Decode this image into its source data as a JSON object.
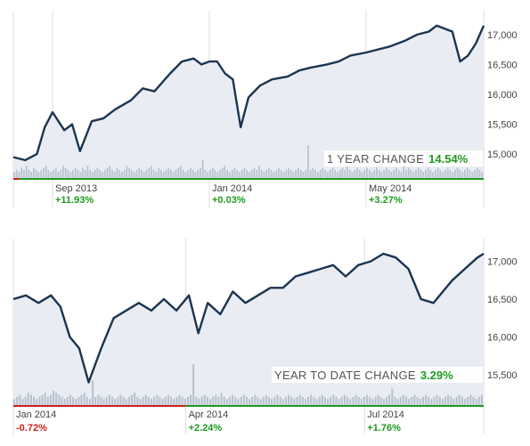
{
  "colors": {
    "line": "#1c3450",
    "area": "#e9edf3",
    "volume": "#b9c3cf",
    "grid": "#dddddd",
    "axis": "#888888",
    "positive": "#1e9a1e",
    "negative": "#cc1f1f"
  },
  "chart_data": [
    {
      "type": "line",
      "title": "",
      "caption_label": "1 YEAR CHANGE",
      "caption_value": "14.54%",
      "caption_color": "#1e9a1e",
      "ylim": [
        14600,
        17400
      ],
      "y_ticks": [
        "17,000",
        "16,500",
        "16,000",
        "15,500",
        "15,000"
      ],
      "y_tick_values": [
        17000,
        16500,
        16000,
        15500,
        15000
      ],
      "x_range": [
        0,
        12
      ],
      "x_ticks": [
        {
          "label": "Sep 2013",
          "x": 1,
          "change": "+11.93%",
          "color": "#1e9a1e"
        },
        {
          "label": "Jan 2014",
          "x": 5,
          "change": "+0.03%",
          "color": "#1e9a1e"
        },
        {
          "label": "May 2014",
          "x": 9,
          "change": "+3.27%",
          "color": "#1e9a1e"
        }
      ],
      "baseline_segments": [
        {
          "from": 0,
          "to": 0.15,
          "color": "#cc1f1f"
        },
        {
          "from": 0.15,
          "to": 12,
          "color": "#1e9a1e"
        }
      ],
      "series": [
        {
          "x": [
            0,
            0.3,
            0.6,
            0.8,
            1.0,
            1.3,
            1.5,
            1.7,
            2.0,
            2.3,
            2.6,
            3.0,
            3.3,
            3.6,
            4.0,
            4.3,
            4.6,
            4.8,
            5.0,
            5.2,
            5.4,
            5.6,
            5.8,
            6.0,
            6.3,
            6.6,
            7.0,
            7.3,
            7.6,
            8.0,
            8.3,
            8.6,
            9.0,
            9.3,
            9.6,
            10.0,
            10.3,
            10.6,
            10.8,
            11.0,
            11.2,
            11.4,
            11.6,
            11.8,
            12.0
          ],
          "y": [
            14950,
            14900,
            15000,
            15450,
            15700,
            15400,
            15500,
            15050,
            15550,
            15600,
            15750,
            15900,
            16100,
            16050,
            16350,
            16550,
            16600,
            16500,
            16550,
            16550,
            16350,
            16250,
            15450,
            15950,
            16150,
            16250,
            16300,
            16400,
            16450,
            16500,
            16550,
            16650,
            16700,
            16750,
            16800,
            16900,
            17000,
            17050,
            17150,
            17100,
            17050,
            16550,
            16650,
            16850,
            17150
          ]
        }
      ],
      "volume": [
        3,
        4,
        3,
        5,
        4,
        6,
        4,
        3,
        5,
        4,
        3,
        4,
        5,
        6,
        4,
        3,
        4,
        5,
        3,
        4,
        6,
        5,
        4,
        3,
        4,
        5,
        4,
        3,
        5,
        4,
        6,
        4,
        3,
        4,
        5,
        4,
        3,
        4,
        5,
        6,
        4,
        3,
        5,
        4,
        3,
        4,
        6,
        5,
        4,
        3,
        4,
        5,
        4,
        3,
        4,
        5,
        6,
        4,
        3,
        5,
        4,
        3,
        4,
        5,
        4,
        3,
        4,
        5,
        6,
        4,
        3,
        4,
        5,
        4,
        3,
        4,
        5,
        9,
        4,
        3,
        4,
        5,
        4,
        3,
        4,
        5,
        6,
        4,
        3,
        4,
        5,
        4,
        3,
        4,
        5,
        4,
        3,
        4,
        5,
        4,
        6,
        4,
        3,
        4,
        5,
        4,
        3,
        4,
        5,
        4,
        3,
        4,
        5,
        4,
        3,
        4,
        5,
        4,
        3,
        4,
        16,
        4,
        5,
        4,
        3,
        4,
        5,
        4,
        3,
        4,
        5,
        4,
        3,
        4,
        5,
        4,
        6,
        4,
        3,
        4,
        5,
        4,
        3,
        4,
        5,
        4,
        3,
        4,
        5,
        4,
        3,
        4,
        5,
        4,
        3,
        4,
        5,
        4,
        3,
        10,
        4,
        5,
        4,
        3,
        4,
        5,
        4,
        3,
        4,
        5,
        4,
        3,
        4,
        5,
        4,
        3,
        4,
        5,
        4,
        3,
        4,
        5,
        4,
        3,
        4,
        5,
        4,
        3,
        4,
        5,
        4,
        3
      ]
    },
    {
      "type": "line",
      "title": "",
      "caption_label": "YEAR TO DATE CHANGE",
      "caption_value": "3.29%",
      "caption_color": "#1e9a1e",
      "ylim": [
        15100,
        17300
      ],
      "y_ticks": [
        "17,000",
        "16,500",
        "16,000",
        "15,500"
      ],
      "y_tick_values": [
        17000,
        16500,
        16000,
        15500
      ],
      "x_range": [
        0,
        7.5
      ],
      "x_ticks": [
        {
          "label": "Jan 2014",
          "x": 0,
          "change": "-0.72%",
          "color": "#cc1f1f"
        },
        {
          "label": "Apr 2014",
          "x": 2.75,
          "change": "+2.24%",
          "color": "#1e9a1e"
        },
        {
          "label": "Jul 2014",
          "x": 5.6,
          "change": "+1.76%",
          "color": "#1e9a1e"
        }
      ],
      "baseline_segments": [
        {
          "from": 0,
          "to": 2.75,
          "color": "#cc1f1f"
        },
        {
          "from": 2.75,
          "to": 7.5,
          "color": "#1e9a1e"
        }
      ],
      "series": [
        {
          "x": [
            0,
            0.2,
            0.4,
            0.6,
            0.75,
            0.9,
            1.05,
            1.2,
            1.4,
            1.6,
            1.8,
            2.0,
            2.2,
            2.4,
            2.6,
            2.8,
            2.95,
            3.1,
            3.3,
            3.5,
            3.7,
            3.9,
            4.1,
            4.3,
            4.5,
            4.7,
            4.9,
            5.1,
            5.3,
            5.5,
            5.7,
            5.9,
            6.1,
            6.3,
            6.5,
            6.7,
            6.85,
            7.0,
            7.2,
            7.4,
            7.5
          ],
          "y": [
            16500,
            16550,
            16450,
            16550,
            16400,
            16000,
            15850,
            15400,
            15850,
            16250,
            16350,
            16450,
            16350,
            16500,
            16350,
            16550,
            16050,
            16450,
            16300,
            16600,
            16450,
            16550,
            16650,
            16650,
            16800,
            16850,
            16900,
            16950,
            16800,
            16950,
            17000,
            17100,
            17050,
            16900,
            16500,
            16450,
            16600,
            16750,
            16900,
            17050,
            17100
          ]
        }
      ],
      "volume": [
        3,
        4,
        5,
        3,
        4,
        6,
        5,
        4,
        3,
        4,
        5,
        6,
        4,
        5,
        7,
        6,
        5,
        4,
        3,
        4,
        5,
        4,
        3,
        4,
        5,
        6,
        4,
        3,
        12,
        4,
        5,
        4,
        3,
        4,
        5,
        4,
        3,
        4,
        5,
        4,
        3,
        4,
        5,
        6,
        4,
        3,
        4,
        5,
        4,
        3,
        4,
        5,
        4,
        3,
        4,
        5,
        4,
        3,
        4,
        5,
        4,
        3,
        4,
        5,
        20,
        4,
        3,
        4,
        5,
        4,
        3,
        4,
        5,
        4,
        6,
        4,
        3,
        4,
        5,
        4,
        3,
        4,
        5,
        4,
        3,
        4,
        5,
        4,
        3,
        4,
        5,
        4,
        3,
        4,
        5,
        4,
        3,
        4,
        5,
        4,
        3,
        4,
        5,
        4,
        3,
        4,
        5,
        4,
        3,
        4,
        5,
        4,
        3,
        4,
        5,
        4,
        3,
        4,
        5,
        4,
        3,
        4,
        5,
        4,
        3,
        4,
        5,
        4,
        3,
        4,
        5,
        4,
        3,
        4,
        5,
        8,
        4,
        3,
        4,
        5,
        4,
        3,
        4,
        5,
        4,
        3,
        4,
        5,
        4,
        3,
        4,
        5,
        4,
        3,
        4,
        5,
        4,
        3,
        4,
        5,
        4,
        3,
        4,
        5,
        4,
        3,
        4,
        5
      ]
    }
  ]
}
